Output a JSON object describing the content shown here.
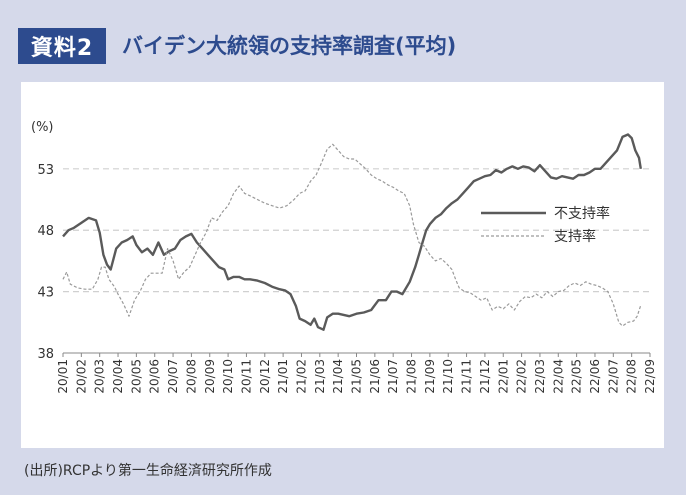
{
  "header": {
    "badge": "資料2",
    "title": "バイデン大統領の支持率調査(平均)"
  },
  "source": "(出所)RCPより第一生命経済研究所作成",
  "chart_data": {
    "type": "line",
    "title": "バイデン大統領の支持率調査(平均)",
    "ylabel": "(%)",
    "xlabel": "",
    "ylim": [
      38,
      56
    ],
    "yticks": [
      38,
      43,
      48,
      53
    ],
    "grid": "dashed-horizontal",
    "legend": "inside-right",
    "x_labels": [
      "20/01",
      "20/02",
      "20/03",
      "20/04",
      "20/05",
      "20/06",
      "20/07",
      "20/08",
      "20/09",
      "20/10",
      "20/11",
      "20/12",
      "21/01",
      "21/02",
      "21/03",
      "21/04",
      "21/05",
      "21/06",
      "21/07",
      "21/08",
      "21/09",
      "21/10",
      "21/11",
      "21/12",
      "22/01",
      "22/02",
      "22/03",
      "22/04",
      "22/05",
      "22/06",
      "22/07",
      "22/08",
      "22/09"
    ],
    "series": [
      {
        "name": "不支持率",
        "color": "#5a5a5a",
        "style": "solid",
        "points": [
          [
            0,
            47.5
          ],
          [
            0.3,
            48
          ],
          [
            0.6,
            48.2
          ],
          [
            1,
            48.6
          ],
          [
            1.4,
            49
          ],
          [
            1.8,
            48.8
          ],
          [
            2,
            47.8
          ],
          [
            2.2,
            46
          ],
          [
            2.4,
            45.2
          ],
          [
            2.6,
            44.8
          ],
          [
            2.9,
            46.5
          ],
          [
            3.2,
            47
          ],
          [
            3.5,
            47.2
          ],
          [
            3.8,
            47.5
          ],
          [
            4,
            46.8
          ],
          [
            4.3,
            46.2
          ],
          [
            4.6,
            46.5
          ],
          [
            4.9,
            46
          ],
          [
            5.2,
            47
          ],
          [
            5.5,
            46
          ],
          [
            5.8,
            46.3
          ],
          [
            6.1,
            46.5
          ],
          [
            6.4,
            47.2
          ],
          [
            6.7,
            47.5
          ],
          [
            7,
            47.7
          ],
          [
            7.3,
            47
          ],
          [
            7.6,
            46.5
          ],
          [
            7.9,
            46
          ],
          [
            8.2,
            45.5
          ],
          [
            8.5,
            45
          ],
          [
            8.8,
            44.8
          ],
          [
            9,
            44
          ],
          [
            9.3,
            44.2
          ],
          [
            9.6,
            44.2
          ],
          [
            9.9,
            44
          ],
          [
            10.2,
            44
          ],
          [
            10.6,
            43.9
          ],
          [
            11,
            43.7
          ],
          [
            11.4,
            43.4
          ],
          [
            11.8,
            43.2
          ],
          [
            12.1,
            43.1
          ],
          [
            12.4,
            42.8
          ],
          [
            12.7,
            41.8
          ],
          [
            12.9,
            40.8
          ],
          [
            13.2,
            40.6
          ],
          [
            13.5,
            40.3
          ],
          [
            13.7,
            40.8
          ],
          [
            13.9,
            40.1
          ],
          [
            14.2,
            39.9
          ],
          [
            14.4,
            40.9
          ],
          [
            14.7,
            41.2
          ],
          [
            15,
            41.2
          ],
          [
            15.3,
            41.1
          ],
          [
            15.6,
            41
          ],
          [
            16,
            41.2
          ],
          [
            16.4,
            41.3
          ],
          [
            16.8,
            41.5
          ],
          [
            17.2,
            42.3
          ],
          [
            17.6,
            42.3
          ],
          [
            17.9,
            43
          ],
          [
            18.2,
            43
          ],
          [
            18.5,
            42.8
          ],
          [
            18.9,
            43.8
          ],
          [
            19.2,
            45
          ],
          [
            19.4,
            46
          ],
          [
            19.6,
            47
          ],
          [
            19.8,
            48
          ],
          [
            20,
            48.5
          ],
          [
            20.3,
            49
          ],
          [
            20.6,
            49.3
          ],
          [
            20.9,
            49.8
          ],
          [
            21.2,
            50.2
          ],
          [
            21.5,
            50.5
          ],
          [
            21.8,
            51
          ],
          [
            22.1,
            51.5
          ],
          [
            22.4,
            52
          ],
          [
            22.7,
            52.2
          ],
          [
            23,
            52.4
          ],
          [
            23.3,
            52.5
          ],
          [
            23.6,
            52.9
          ],
          [
            23.9,
            52.7
          ],
          [
            24.2,
            53
          ],
          [
            24.5,
            53.2
          ],
          [
            24.8,
            53
          ],
          [
            25.1,
            53.2
          ],
          [
            25.4,
            53.1
          ],
          [
            25.7,
            52.8
          ],
          [
            26,
            53.3
          ],
          [
            26.3,
            52.8
          ],
          [
            26.6,
            52.3
          ],
          [
            26.9,
            52.2
          ],
          [
            27.2,
            52.4
          ],
          [
            27.5,
            52.3
          ],
          [
            27.8,
            52.2
          ],
          [
            28.1,
            52.5
          ],
          [
            28.4,
            52.5
          ],
          [
            28.7,
            52.7
          ],
          [
            29,
            53
          ],
          [
            29.3,
            53
          ],
          [
            29.6,
            53.5
          ],
          [
            29.9,
            54
          ],
          [
            30.2,
            54.5
          ],
          [
            30.5,
            55.6
          ],
          [
            30.8,
            55.8
          ],
          [
            31,
            55.5
          ],
          [
            31.2,
            54.5
          ],
          [
            31.4,
            53.9
          ],
          [
            31.5,
            53
          ]
        ]
      },
      {
        "name": "支持率",
        "color": "#9a9a9a",
        "style": "dashed",
        "points": [
          [
            0,
            44
          ],
          [
            0.2,
            44.6
          ],
          [
            0.4,
            43.6
          ],
          [
            0.8,
            43.3
          ],
          [
            1.2,
            43.2
          ],
          [
            1.6,
            43.2
          ],
          [
            1.9,
            44
          ],
          [
            2.1,
            45
          ],
          [
            2.3,
            45
          ],
          [
            2.5,
            44
          ],
          [
            2.8,
            43.4
          ],
          [
            3,
            42.8
          ],
          [
            3.3,
            42
          ],
          [
            3.6,
            41
          ],
          [
            3.9,
            42.3
          ],
          [
            4.2,
            43
          ],
          [
            4.5,
            44
          ],
          [
            4.8,
            44.5
          ],
          [
            5.1,
            44.5
          ],
          [
            5.4,
            44.5
          ],
          [
            5.7,
            46.5
          ],
          [
            6,
            45.5
          ],
          [
            6.3,
            44
          ],
          [
            6.6,
            44.6
          ],
          [
            6.9,
            45
          ],
          [
            7.2,
            46
          ],
          [
            7.5,
            47
          ],
          [
            7.8,
            47.8
          ],
          [
            8.1,
            49
          ],
          [
            8.4,
            48.8
          ],
          [
            8.7,
            49.5
          ],
          [
            9,
            50
          ],
          [
            9.3,
            51
          ],
          [
            9.6,
            51.6
          ],
          [
            9.9,
            51
          ],
          [
            10.2,
            50.8
          ],
          [
            10.6,
            50.5
          ],
          [
            11,
            50.2
          ],
          [
            11.4,
            50
          ],
          [
            11.8,
            49.8
          ],
          [
            12.2,
            50
          ],
          [
            12.6,
            50.5
          ],
          [
            12.9,
            51
          ],
          [
            13.2,
            51.2
          ],
          [
            13.5,
            52
          ],
          [
            13.8,
            52.5
          ],
          [
            14.1,
            53.5
          ],
          [
            14.4,
            54.6
          ],
          [
            14.7,
            55
          ],
          [
            15,
            54.5
          ],
          [
            15.3,
            54
          ],
          [
            15.6,
            53.8
          ],
          [
            15.9,
            53.8
          ],
          [
            16.2,
            53.4
          ],
          [
            16.5,
            53
          ],
          [
            16.8,
            52.5
          ],
          [
            17.1,
            52.2
          ],
          [
            17.4,
            52
          ],
          [
            17.7,
            51.7
          ],
          [
            18,
            51.5
          ],
          [
            18.3,
            51.2
          ],
          [
            18.6,
            51
          ],
          [
            18.9,
            50
          ],
          [
            19.1,
            48.5
          ],
          [
            19.4,
            47
          ],
          [
            19.7,
            46.7
          ],
          [
            20,
            46
          ],
          [
            20.3,
            45.5
          ],
          [
            20.6,
            45.7
          ],
          [
            20.9,
            45.3
          ],
          [
            21.2,
            44.8
          ],
          [
            21.4,
            44
          ],
          [
            21.6,
            43.3
          ],
          [
            21.9,
            43
          ],
          [
            22.2,
            42.9
          ],
          [
            22.5,
            42.6
          ],
          [
            22.8,
            42.3
          ],
          [
            23.1,
            42.5
          ],
          [
            23.4,
            41.5
          ],
          [
            23.7,
            41.8
          ],
          [
            24,
            41.6
          ],
          [
            24.3,
            42
          ],
          [
            24.6,
            41.5
          ],
          [
            24.9,
            42.2
          ],
          [
            25.2,
            42.6
          ],
          [
            25.5,
            42.5
          ],
          [
            25.8,
            42.8
          ],
          [
            26.1,
            42.5
          ],
          [
            26.4,
            43
          ],
          [
            26.7,
            42.6
          ],
          [
            27,
            43
          ],
          [
            27.3,
            43.1
          ],
          [
            27.6,
            43.5
          ],
          [
            27.9,
            43.7
          ],
          [
            28.2,
            43.5
          ],
          [
            28.5,
            43.8
          ],
          [
            28.8,
            43.6
          ],
          [
            29.1,
            43.5
          ],
          [
            29.4,
            43.3
          ],
          [
            29.7,
            43
          ],
          [
            30,
            42
          ],
          [
            30.3,
            40.5
          ],
          [
            30.5,
            40.2
          ],
          [
            30.8,
            40.5
          ],
          [
            31.1,
            40.6
          ],
          [
            31.3,
            41
          ],
          [
            31.5,
            41.9
          ]
        ]
      }
    ]
  }
}
